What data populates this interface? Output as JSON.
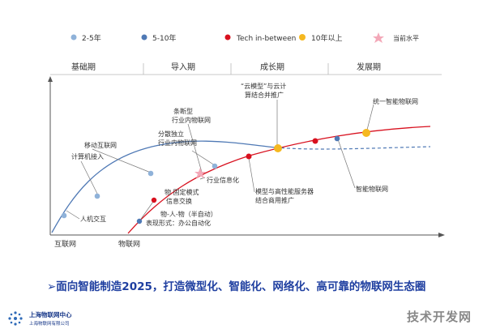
{
  "legend": [
    {
      "label": "2-5年",
      "color": "#8fb2d9",
      "shape": "dot"
    },
    {
      "label": "5-10年",
      "color": "#4f79b5",
      "shape": "dot"
    },
    {
      "label": "Tech in-between",
      "color": "#d8101e",
      "shape": "dot"
    },
    {
      "label": "10年以上",
      "color": "#f5b820",
      "shape": "dot"
    },
    {
      "label": "当前水平",
      "color": "#f3a8b8",
      "shape": "star"
    }
  ],
  "phases": [
    "基础期",
    "导入期",
    "成长期",
    "发展期"
  ],
  "x_axis_labels": [
    "互联网",
    "物联网"
  ],
  "annotations": {
    "hci": "人机交互",
    "computer_access": "计算机接入",
    "mobile_internet": "移动互联网",
    "split_1": "分散独立",
    "split_2": "行业内物联网",
    "fragment_1": "条断型",
    "fragment_2": "行业内物联网",
    "industry_info": "行业信息化",
    "local_1": "物 固定模式",
    "local_2": "信息交换",
    "things_1": "物-人-物（半自动）",
    "things_2": "表现形式：办公自动化",
    "cloud_1": "“云模型”与云计",
    "cloud_2": "算结合并推广",
    "model_1": "模型与高性能服务器",
    "model_2": "结合商用推广",
    "smart_iot": "智能物联网",
    "unified": "统一智能物联网"
  },
  "headline": "➢面向智能制造2025，打造微型化、智能化、网络化、高可靠的物联网生态圈",
  "logo": {
    "name": "上海物联网中心",
    "sub": "上海物联网有限公司"
  },
  "watermark": "技术开发网"
}
